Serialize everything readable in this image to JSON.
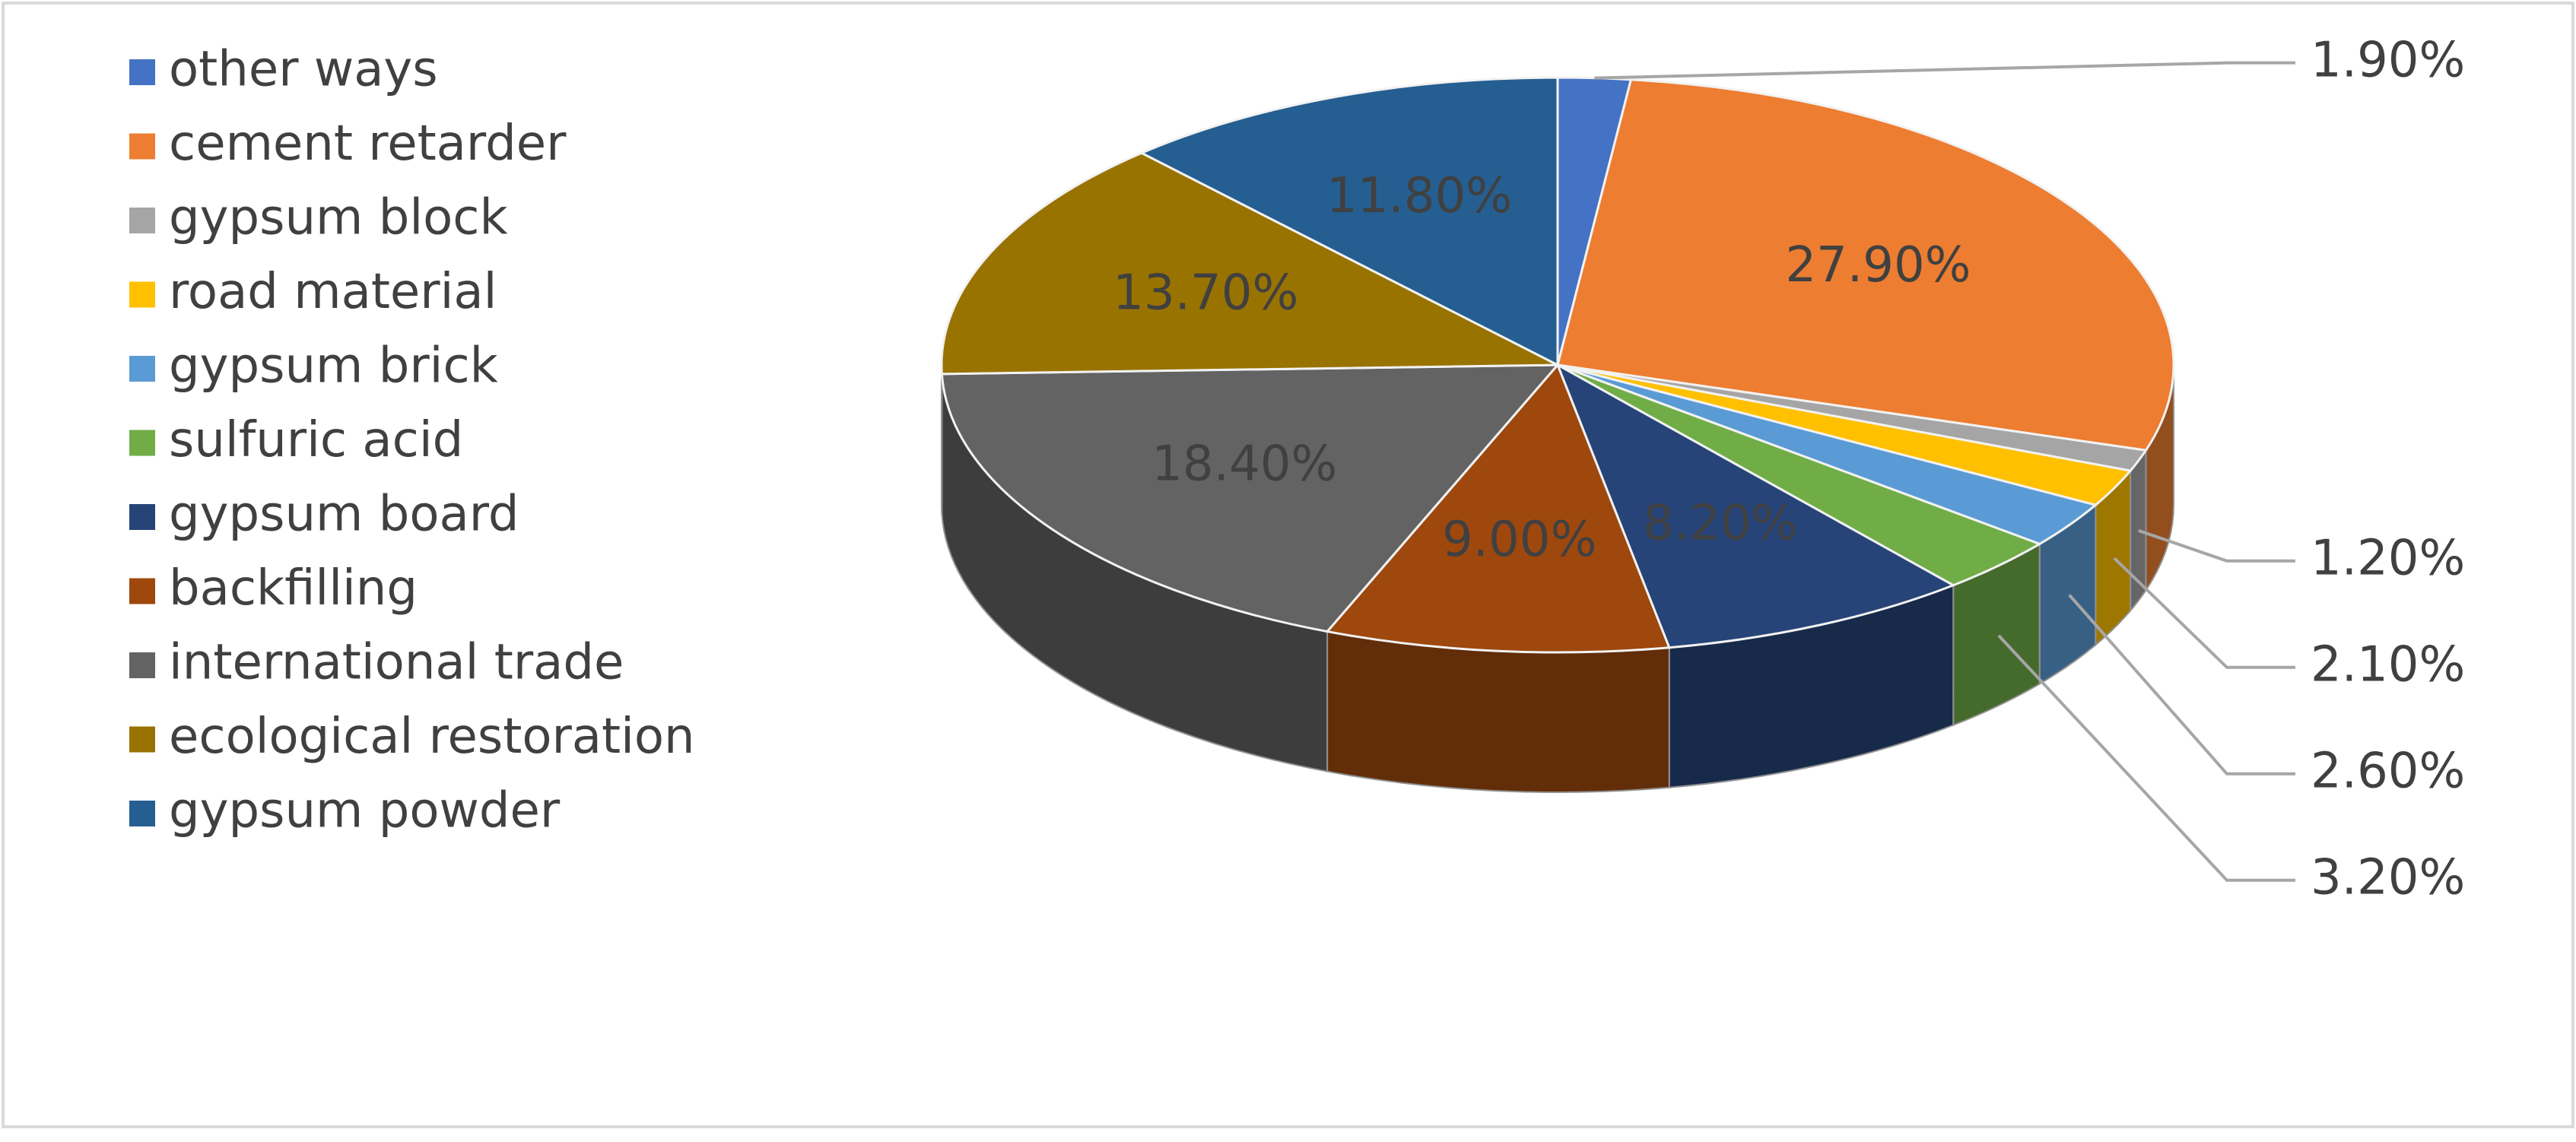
{
  "chart_data": {
    "type": "pie",
    "categories": [
      "other ways",
      "cement retarder",
      "gypsum block",
      "road material",
      "gypsum brick",
      "sulfuric acid",
      "gypsum board",
      "backfilling",
      "international trade",
      "ecological restoration",
      "gypsum powder"
    ],
    "values": [
      1.9,
      27.9,
      1.2,
      2.1,
      2.6,
      3.2,
      8.2,
      9.0,
      18.4,
      13.7,
      11.8
    ],
    "value_labels": [
      "1.90%",
      "27.90%",
      "1.20%",
      "2.10%",
      "2.60%",
      "3.20%",
      "8.20%",
      "9.00%",
      "18.40%",
      "13.70%",
      "11.80%"
    ],
    "colors": [
      "#4472c4",
      "#ed7d31",
      "#a5a5a5",
      "#ffc000",
      "#5b9bd5",
      "#70ad47",
      "#264478",
      "#9e480e",
      "#636363",
      "#997300",
      "#255e91"
    ],
    "legend": "left"
  }
}
